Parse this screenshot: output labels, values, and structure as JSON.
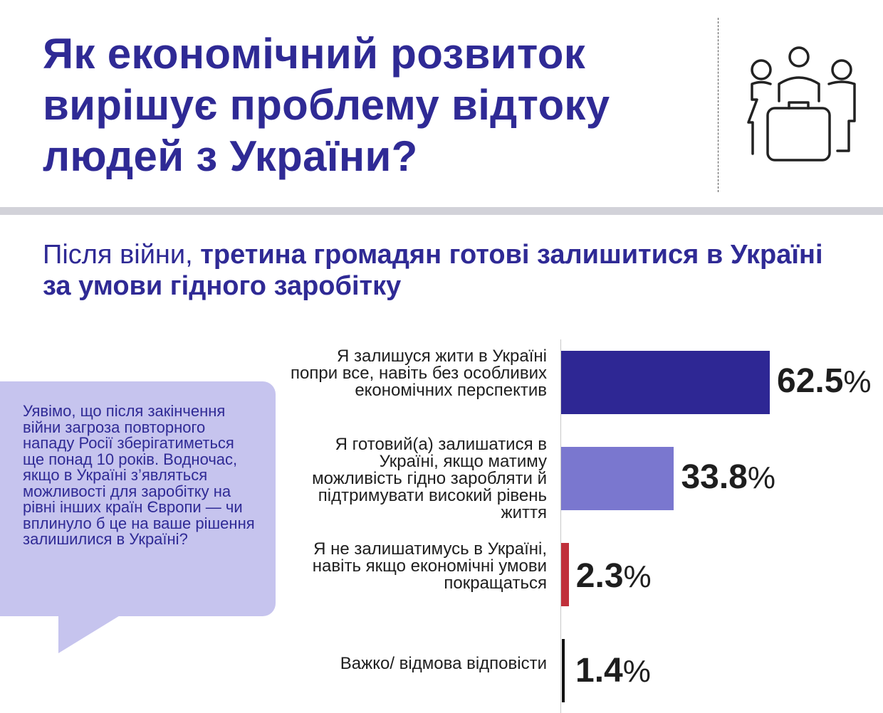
{
  "header": {
    "title": "Як економічний розвиток вирішує проблему відтоку людей з України?",
    "icon": "people-with-suitcase-icon"
  },
  "subtitle": {
    "regular": "Після війни, ",
    "bold": "третина громадян готові залишитися в Україні за умови гідного заробітку"
  },
  "question": "Уявімо, що після закінчення війни загроза повторного нападу Росії зберігатиметься ще понад 10 років. Водночас, якщо в Україні з’являться можливості для заробітку на рівні інших країн Європи — чи вплинуло б це на ваше рішення залишилися в Україні?",
  "colors": {
    "title": "#2f2a95",
    "bar_stay_anyway": "#2e2794",
    "bar_stay_if_income": "#7a77cf",
    "bar_leave": "#c0303a",
    "bar_dont_know": "#111111",
    "bubble": "#c6c4ee"
  },
  "chart_data": {
    "type": "bar",
    "orientation": "horizontal",
    "unit": "%",
    "categories": [
      "Я залишуся жити в Україні попри все, навіть без особливих економічних перспектив",
      "Я готовий(а) залишатися в Україні, якщо матиму можливість гідно заробляти й підтримувати високий рівень життя",
      "Я не залишатимусь в Україні, навіть якщо економічні умови покращаться",
      "Важко/ відмова відповісти"
    ],
    "values": [
      62.5,
      33.8,
      2.3,
      1.4
    ],
    "value_labels": [
      "62.5",
      "33.8",
      "2.3",
      "1.4"
    ],
    "xlim": [
      0,
      62.5
    ],
    "grid": false,
    "legend": "none"
  }
}
